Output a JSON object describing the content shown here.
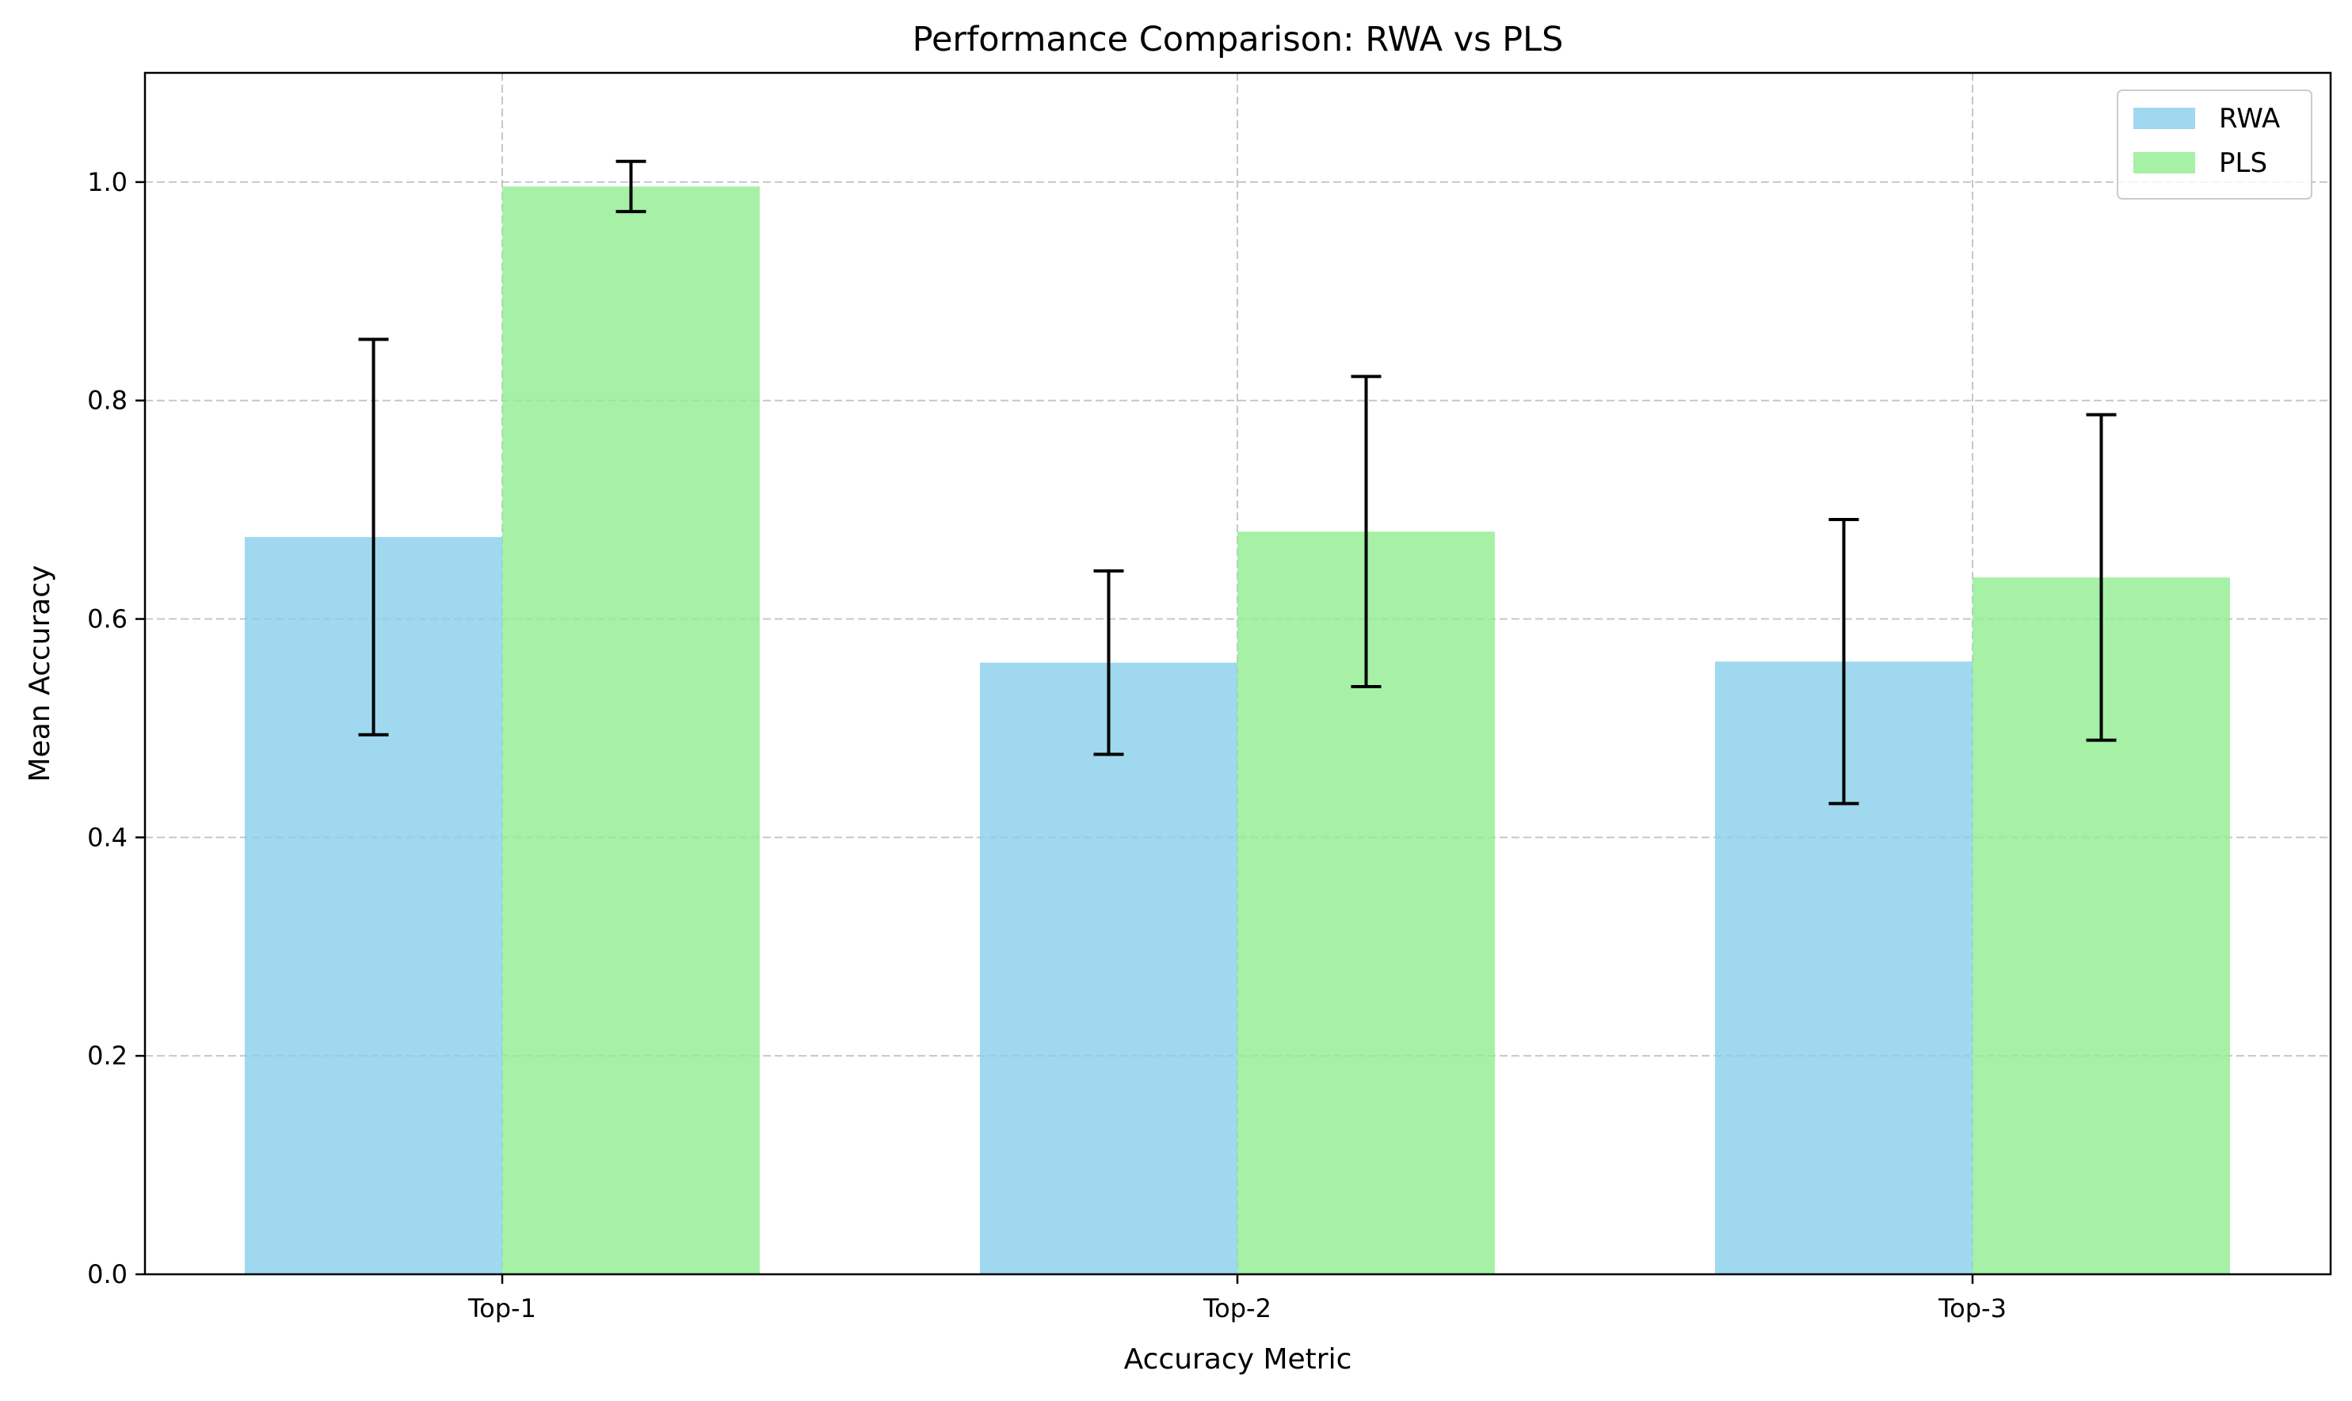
{
  "chart_data": {
    "type": "bar",
    "title": "Performance Comparison: RWA vs PLS",
    "xlabel": "Accuracy Metric",
    "ylabel": "Mean Accuracy",
    "categories": [
      "Top-1",
      "Top-2",
      "Top-3"
    ],
    "series": [
      {
        "name": "RWA",
        "color": "#87ceeb",
        "values": [
          0.675,
          0.56,
          0.561
        ],
        "error": [
          0.181,
          0.084,
          0.13
        ]
      },
      {
        "name": "PLS",
        "color": "#90ee90",
        "values": [
          0.996,
          0.68,
          0.638
        ],
        "error": [
          0.023,
          0.142,
          0.149
        ]
      }
    ],
    "ylim": [
      0,
      1.1
    ],
    "yticks": [
      "0.0",
      "0.2",
      "0.4",
      "0.6",
      "0.8",
      "1.0"
    ],
    "grid": true,
    "legend": "top-right"
  }
}
